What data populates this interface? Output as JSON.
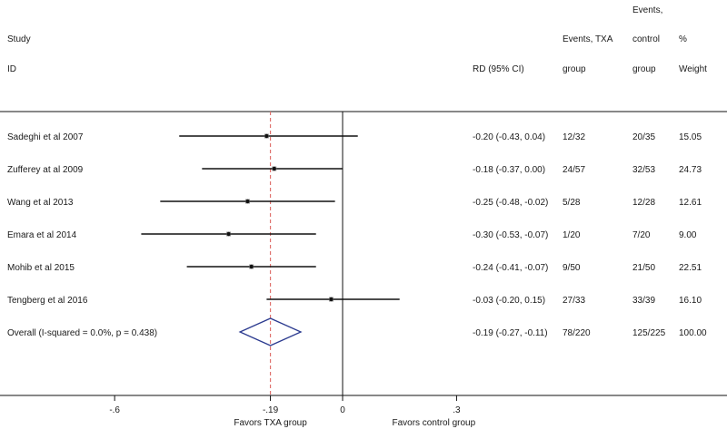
{
  "headers": {
    "study_line1": "Study",
    "study_line2": "ID",
    "rd": "RD (95% CI)",
    "tx_line1": "Events, TXA",
    "tx_line2": "group",
    "ctrl_line0": "Events,",
    "ctrl_line1": "control",
    "ctrl_line2": "group",
    "wt_line1": "%",
    "wt_line2": "Weight"
  },
  "chart_data": {
    "type": "forest",
    "xlim": [
      -0.83,
      0.83
    ],
    "null_line": 0,
    "overall_line": -0.19,
    "ticks": [
      {
        "value": -0.6,
        "label": "-.6"
      },
      {
        "value": -0.19,
        "label": "-.19"
      },
      {
        "value": 0,
        "label": "0"
      },
      {
        "value": 0.3,
        "label": ".3"
      }
    ],
    "favors_left": "Favors TXA group",
    "favors_right": "Favors control group",
    "studies": [
      {
        "id": "Sadeghi et al 2007",
        "rd": -0.2,
        "lo": -0.43,
        "hi": 0.04,
        "ci_text": "-0.20 (-0.43, 0.04)",
        "tx": "12/32",
        "ctrl": "20/35",
        "weight": "15.05"
      },
      {
        "id": "Zufferey at al 2009",
        "rd": -0.18,
        "lo": -0.37,
        "hi": 0.0,
        "ci_text": "-0.18 (-0.37, 0.00)",
        "tx": "24/57",
        "ctrl": "32/53",
        "weight": "24.73"
      },
      {
        "id": "Wang et al 2013",
        "rd": -0.25,
        "lo": -0.48,
        "hi": -0.02,
        "ci_text": "-0.25 (-0.48, -0.02)",
        "tx": "5/28",
        "ctrl": "12/28",
        "weight": "12.61"
      },
      {
        "id": "Emara et al 2014",
        "rd": -0.3,
        "lo": -0.53,
        "hi": -0.07,
        "ci_text": "-0.30 (-0.53, -0.07)",
        "tx": "1/20",
        "ctrl": "7/20",
        "weight": "9.00"
      },
      {
        "id": "Mohib et al 2015",
        "rd": -0.24,
        "lo": -0.41,
        "hi": -0.07,
        "ci_text": "-0.24 (-0.41, -0.07)",
        "tx": "9/50",
        "ctrl": "21/50",
        "weight": "22.51"
      },
      {
        "id": "Tengberg et al 2016",
        "rd": -0.03,
        "lo": -0.2,
        "hi": 0.15,
        "ci_text": "-0.03 (-0.20, 0.15)",
        "tx": "27/33",
        "ctrl": "33/39",
        "weight": "16.10"
      }
    ],
    "overall": {
      "id": "Overall  (I-squared = 0.0%, p = 0.438)",
      "rd": -0.19,
      "lo": -0.27,
      "hi": -0.11,
      "ci_text": "-0.19 (-0.27, -0.11)",
      "tx": "78/220",
      "ctrl": "125/225",
      "weight": "100.00"
    },
    "colors": {
      "line": "#111111",
      "ref": "#e0736f",
      "diamond": "#2b3a8f"
    }
  }
}
